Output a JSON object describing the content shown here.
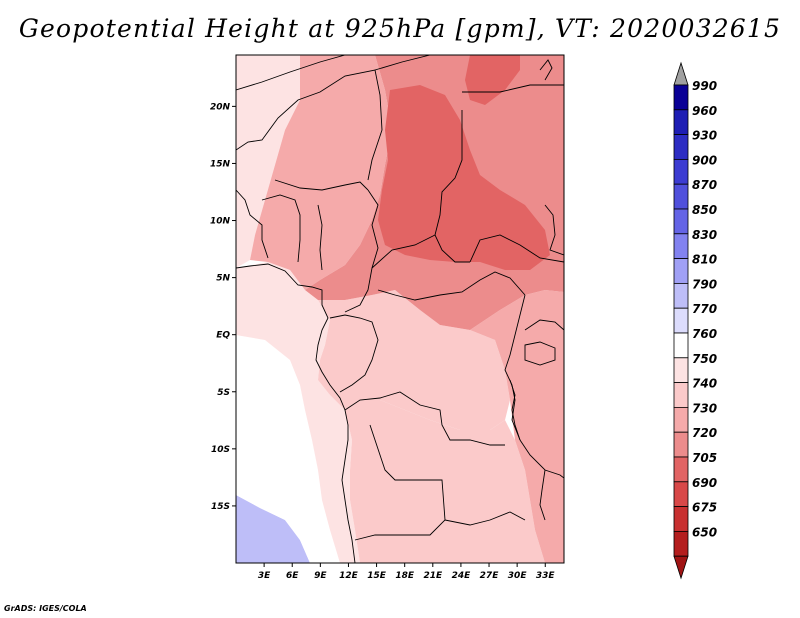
{
  "title": "Geopotential Height at 925hPa [gpm], VT: 2020032615",
  "credit": "GrADS: IGES/COLA",
  "chart_data": {
    "type": "heatmap",
    "variable": "Geopotential Height",
    "level": "925hPa",
    "units": "gpm",
    "valid_time": "2020032615",
    "lon_range": [
      0,
      35
    ],
    "lat_range": [
      -20,
      24.5
    ],
    "lon_ticks": [
      {
        "v": 3,
        "label": "3E"
      },
      {
        "v": 6,
        "label": "6E"
      },
      {
        "v": 9,
        "label": "9E"
      },
      {
        "v": 12,
        "label": "12E"
      },
      {
        "v": 15,
        "label": "15E"
      },
      {
        "v": 18,
        "label": "18E"
      },
      {
        "v": 21,
        "label": "21E"
      },
      {
        "v": 24,
        "label": "24E"
      },
      {
        "v": 27,
        "label": "27E"
      },
      {
        "v": 30,
        "label": "30E"
      },
      {
        "v": 33,
        "label": "33E"
      }
    ],
    "lat_ticks": [
      {
        "v": 20,
        "label": "20N"
      },
      {
        "v": 15,
        "label": "15N"
      },
      {
        "v": 10,
        "label": "10N"
      },
      {
        "v": 5,
        "label": "5N"
      },
      {
        "v": 0,
        "label": "EQ"
      },
      {
        "v": -5,
        "label": "5S"
      },
      {
        "v": -10,
        "label": "10S"
      },
      {
        "v": -15,
        "label": "15S"
      }
    ],
    "colorbar": {
      "levels": [
        990,
        960,
        930,
        900,
        870,
        850,
        830,
        810,
        790,
        770,
        760,
        750,
        740,
        730,
        720,
        705,
        690,
        675,
        650
      ],
      "colors": [
        "#0a0096",
        "#1e1eb4",
        "#2d2dc3",
        "#3c3cd2",
        "#5050dc",
        "#6464e6",
        "#8282f0",
        "#a0a0f5",
        "#bebef8",
        "#dcdcfc",
        "#ffffff",
        "#fde3e3",
        "#fbcaca",
        "#f5aaaa",
        "#ec8c8c",
        "#e26464",
        "#d84848",
        "#c83030",
        "#b41e1e",
        "#a01414"
      ],
      "extend": "both"
    },
    "regions": [
      {
        "name": "southwest-atlantic-low",
        "value": 790
      },
      {
        "name": "southwest-atlantic-pale",
        "value": 765
      },
      {
        "name": "gulf-of-guinea",
        "value": 755
      },
      {
        "name": "west-africa-west",
        "value": 755
      },
      {
        "name": "congo-basin",
        "value": 745
      },
      {
        "name": "angola-zambia",
        "value": 745
      },
      {
        "name": "sahara-central",
        "value": 735
      },
      {
        "name": "east-africa",
        "value": 735
      },
      {
        "name": "sahel-east",
        "value": 725
      },
      {
        "name": "sudan-chad-core",
        "value": 712
      },
      {
        "name": "northeast-peak",
        "value": 712
      }
    ]
  }
}
